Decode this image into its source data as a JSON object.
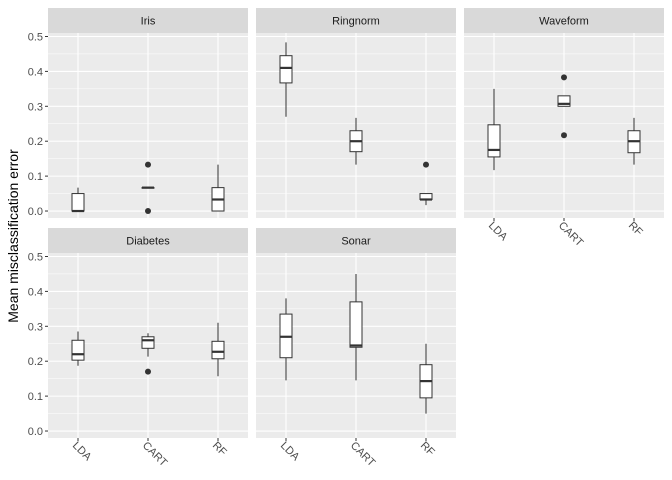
{
  "chart_data": {
    "type": "box",
    "ylabel": "Mean misclassification error",
    "xlabel": "",
    "ylim": [
      -0.02,
      0.51
    ],
    "y_ticks": [
      "0.0",
      "0.1",
      "0.2",
      "0.3",
      "0.4",
      "0.5"
    ],
    "categories": [
      "LDA",
      "CART",
      "RF"
    ],
    "grid": "on",
    "colors": {
      "panel_bg": "#ebebeb",
      "strip_bg": "#d9d9d9",
      "grid": "#ffffff",
      "box_fill": "#ffffff",
      "box_line": "#333333"
    },
    "facets": [
      {
        "title": "Iris",
        "boxes": [
          {
            "category": "LDA",
            "min": 0.0,
            "q1": 0.0,
            "median": 0.0,
            "q3": 0.05,
            "max": 0.067,
            "outliers": []
          },
          {
            "category": "CART",
            "min": 0.067,
            "q1": 0.067,
            "median": 0.067,
            "q3": 0.067,
            "max": 0.067,
            "outliers": [
              0.133,
              0.0
            ]
          },
          {
            "category": "RF",
            "min": 0.0,
            "q1": 0.0,
            "median": 0.033,
            "q3": 0.067,
            "max": 0.133,
            "outliers": []
          }
        ]
      },
      {
        "title": "Ringnorm",
        "boxes": [
          {
            "category": "LDA",
            "min": 0.27,
            "q1": 0.367,
            "median": 0.41,
            "q3": 0.445,
            "max": 0.483,
            "outliers": []
          },
          {
            "category": "CART",
            "min": 0.133,
            "q1": 0.17,
            "median": 0.2,
            "q3": 0.23,
            "max": 0.267,
            "outliers": []
          },
          {
            "category": "RF",
            "min": 0.017,
            "q1": 0.033,
            "median": 0.033,
            "q3": 0.05,
            "max": 0.05,
            "outliers": [
              0.133
            ]
          }
        ]
      },
      {
        "title": "Waveform",
        "boxes": [
          {
            "category": "LDA",
            "min": 0.117,
            "q1": 0.155,
            "median": 0.175,
            "q3": 0.247,
            "max": 0.35,
            "outliers": []
          },
          {
            "category": "CART",
            "min": 0.3,
            "q1": 0.3,
            "median": 0.307,
            "q3": 0.33,
            "max": 0.33,
            "outliers": [
              0.383,
              0.217
            ]
          },
          {
            "category": "RF",
            "min": 0.133,
            "q1": 0.167,
            "median": 0.2,
            "q3": 0.23,
            "max": 0.267,
            "outliers": []
          }
        ]
      },
      {
        "title": "Diabetes",
        "boxes": [
          {
            "category": "LDA",
            "min": 0.187,
            "q1": 0.203,
            "median": 0.22,
            "q3": 0.26,
            "max": 0.285,
            "outliers": []
          },
          {
            "category": "CART",
            "min": 0.213,
            "q1": 0.237,
            "median": 0.26,
            "q3": 0.27,
            "max": 0.28,
            "outliers": [
              0.17
            ]
          },
          {
            "category": "RF",
            "min": 0.157,
            "q1": 0.207,
            "median": 0.227,
            "q3": 0.257,
            "max": 0.31,
            "outliers": []
          }
        ]
      },
      {
        "title": "Sonar",
        "boxes": [
          {
            "category": "LDA",
            "min": 0.145,
            "q1": 0.21,
            "median": 0.27,
            "q3": 0.335,
            "max": 0.38,
            "outliers": []
          },
          {
            "category": "CART",
            "min": 0.145,
            "q1": 0.24,
            "median": 0.245,
            "q3": 0.37,
            "max": 0.45,
            "outliers": []
          },
          {
            "category": "RF",
            "min": 0.05,
            "q1": 0.095,
            "median": 0.143,
            "q3": 0.19,
            "max": 0.25,
            "outliers": []
          }
        ]
      }
    ]
  }
}
